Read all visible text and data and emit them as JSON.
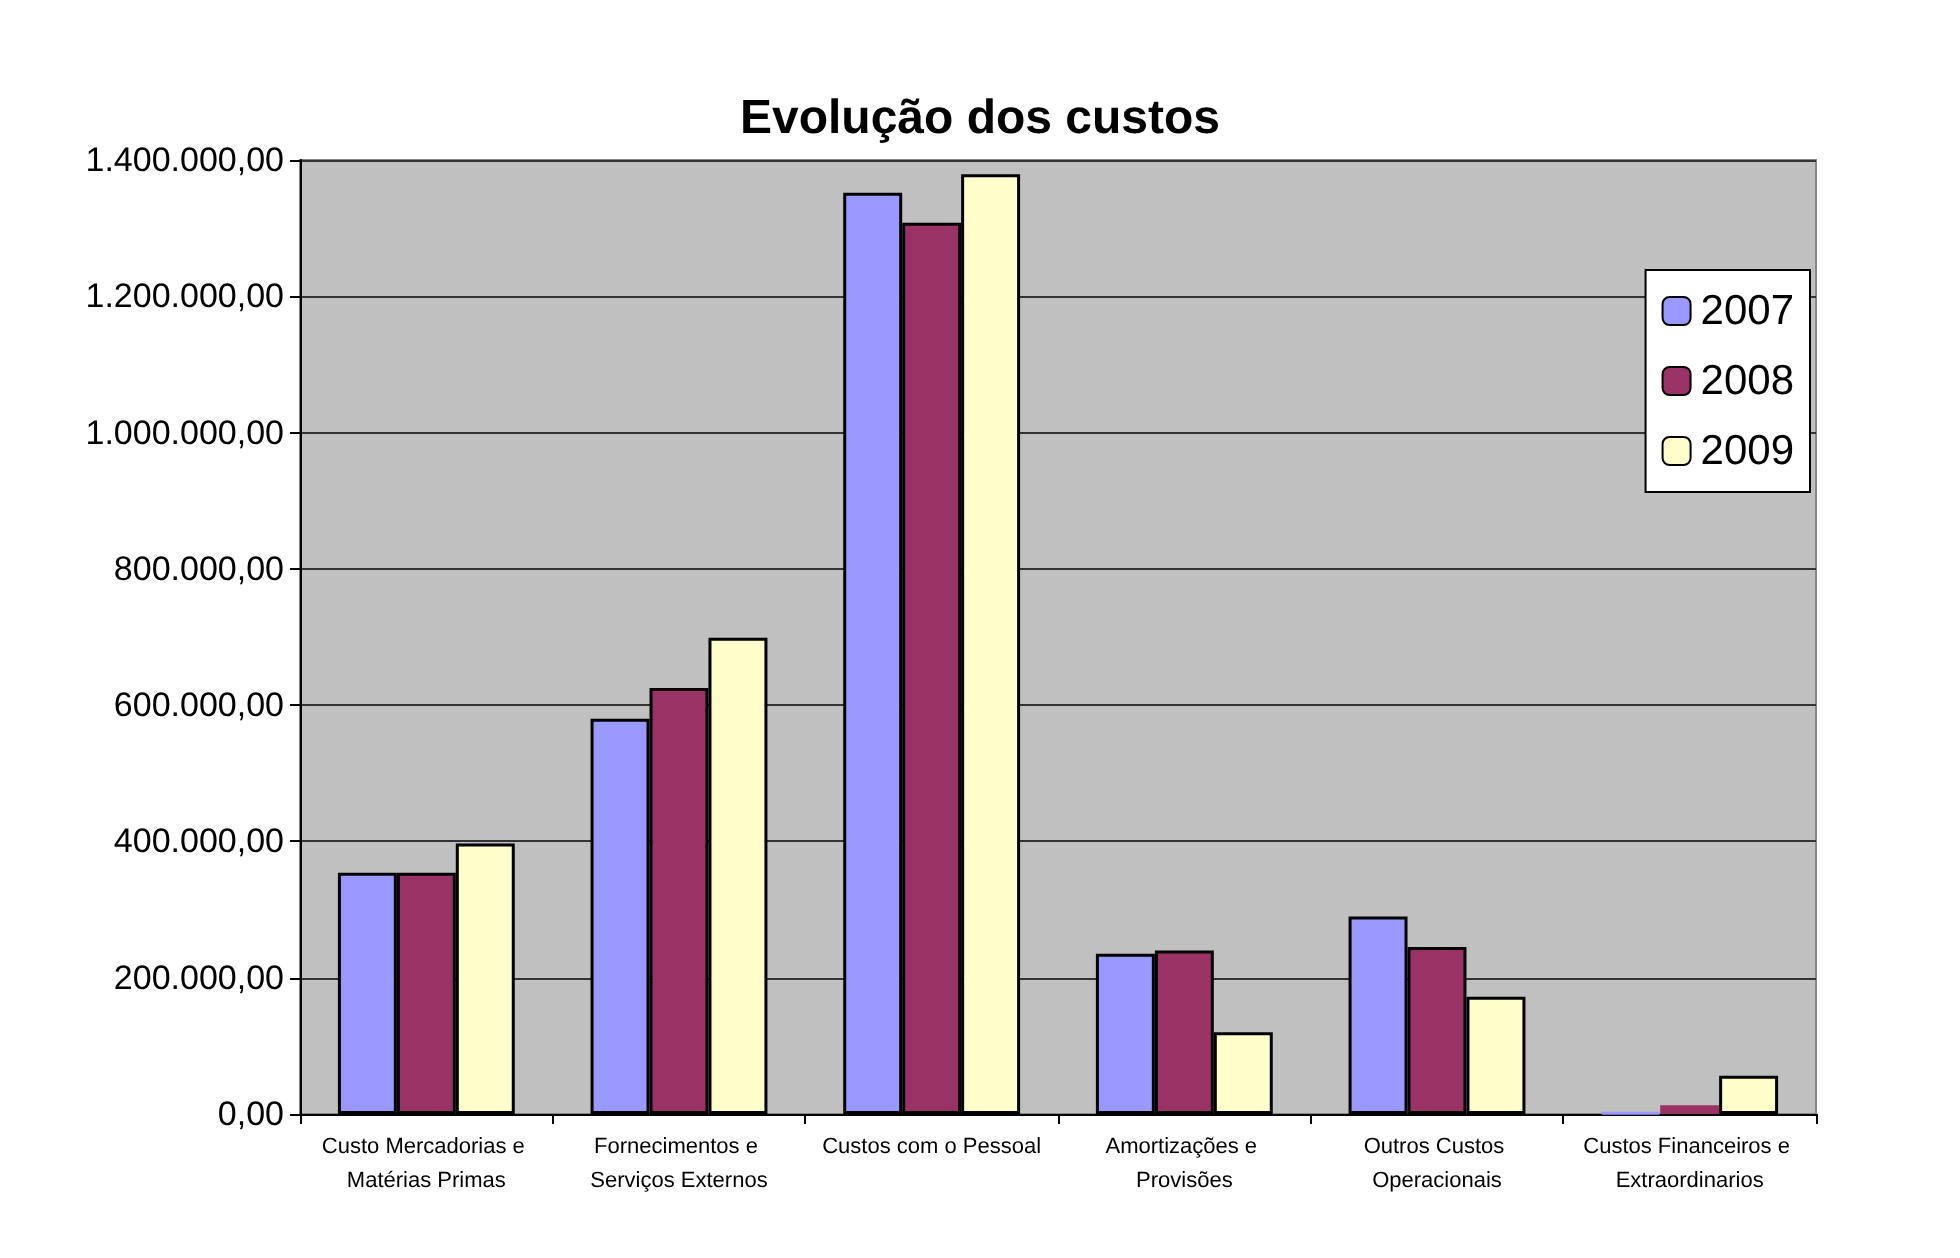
{
  "chart_data": {
    "type": "bar",
    "title": "Evolução dos custos",
    "categories": [
      "Custo Mercadorias e Matérias Primas",
      "Fornecimentos e Serviços Externos",
      "Custos com o Pessoal",
      "Amortizações e Provisões",
      "Outros Custos Operacionais",
      "Custos Financeiros e Extraordinarios"
    ],
    "series": [
      {
        "name": "2007",
        "color": "#9999ff",
        "values": [
          354000,
          580000,
          1352000,
          235000,
          290000,
          2000
        ]
      },
      {
        "name": "2008",
        "color": "#993366",
        "values": [
          354000,
          625000,
          1308000,
          240000,
          245000,
          13000
        ]
      },
      {
        "name": "2009",
        "color": "#ffffcc",
        "values": [
          397000,
          699000,
          1379000,
          120000,
          172000,
          56000
        ]
      }
    ],
    "ylim": [
      0,
      1400000
    ],
    "yticks": [
      {
        "value": 0,
        "label": "0,00"
      },
      {
        "value": 200000,
        "label": "200.000,00"
      },
      {
        "value": 400000,
        "label": "400.000,00"
      },
      {
        "value": 600000,
        "label": "600.000,00"
      },
      {
        "value": 800000,
        "label": "800.000,00"
      },
      {
        "value": 1000000,
        "label": "1.000.000,00"
      },
      {
        "value": 1200000,
        "label": "1.200.000,00"
      },
      {
        "value": 1400000,
        "label": "1.400.000,00"
      }
    ],
    "grid": "y",
    "legend": "top right"
  }
}
